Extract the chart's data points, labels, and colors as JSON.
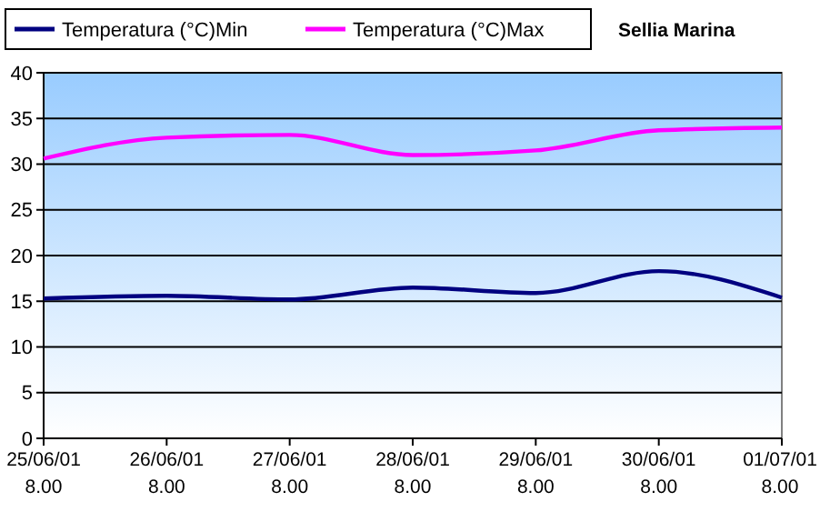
{
  "chart_data": {
    "type": "line",
    "title": "Sellia Marina",
    "categories": [
      "25/06/01\n8.00",
      "26/06/01\n8.00",
      "27/06/01\n8.00",
      "28/06/01\n8.00",
      "29/06/01\n8.00",
      "30/06/01\n8.00",
      "01/07/01\n8.00"
    ],
    "series": [
      {
        "name": "Temperatura (°C)Min",
        "color": "#000080",
        "values": [
          15.3,
          15.6,
          15.2,
          16.5,
          15.9,
          18.3,
          15.4
        ]
      },
      {
        "name": "Temperatura (°C)Max",
        "color": "#ff00ff",
        "values": [
          30.6,
          32.9,
          33.2,
          31.0,
          31.5,
          33.7,
          34.0
        ]
      }
    ],
    "ylim": [
      0,
      40
    ],
    "yticks": [
      0,
      5,
      10,
      15,
      20,
      25,
      30,
      35,
      40
    ],
    "grid": "y",
    "legend": "top left",
    "marker": "none",
    "line_style": "solid"
  }
}
